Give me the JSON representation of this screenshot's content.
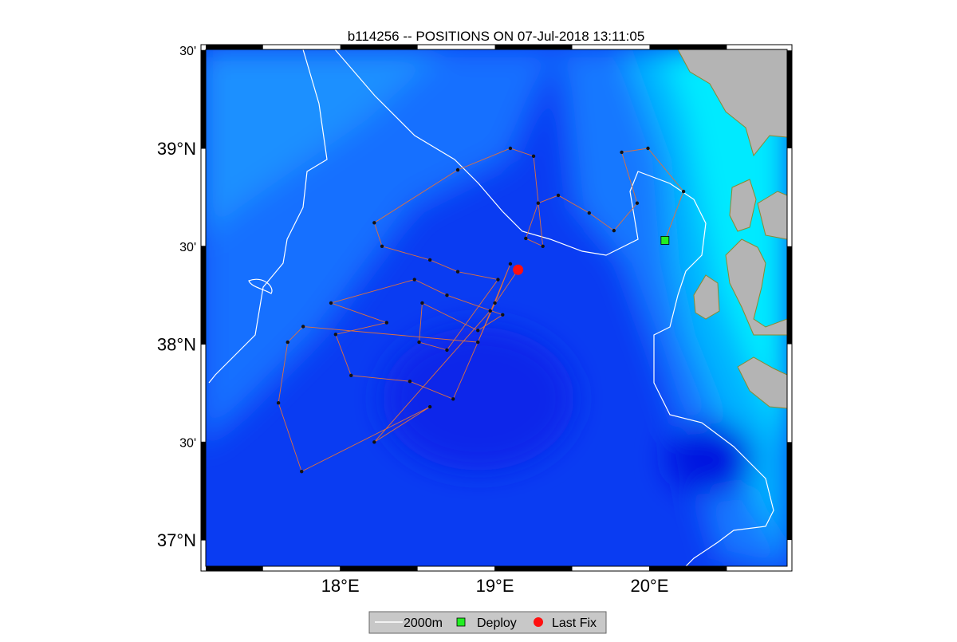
{
  "title": "b114256 -- POSITIONS ON 07-Jul-2018 13:11:05",
  "map": {
    "lon_lim": [
      17.13,
      20.89
    ],
    "lat_lim": [
      36.866,
      39.505
    ],
    "lon_ticks": [
      {
        "value": 18,
        "label": "18°E"
      },
      {
        "value": 19,
        "label": "19°E"
      },
      {
        "value": 20,
        "label": "20°E"
      }
    ],
    "lat_ticks": [
      {
        "value": 39.5,
        "label": "30'"
      },
      {
        "value": 39,
        "label": "39°N"
      },
      {
        "value": 38.5,
        "label": "30'"
      },
      {
        "value": 38,
        "label": "38°N"
      },
      {
        "value": 37.5,
        "label": "30'"
      },
      {
        "value": 37,
        "label": "37°N"
      }
    ],
    "track": {
      "color": "#e0703c",
      "lon": [
        20.1,
        20.22,
        19.99,
        19.82,
        19.92,
        19.77,
        19.61,
        19.41,
        19.28,
        19.2,
        19.31,
        19.25,
        19.1,
        18.76,
        18.22,
        18.27,
        18.58,
        18.76,
        19.02,
        18.69,
        18.51,
        18.53,
        18.89,
        19.05,
        18.69,
        18.48,
        17.94,
        18.3,
        17.97,
        18.07,
        18.45,
        18.73,
        19.0,
        19.1,
        18.89,
        17.76,
        17.66,
        17.6,
        17.75,
        18.58,
        18.22,
        18.97,
        19.15
      ],
      "lat": [
        38.53,
        38.78,
        39.0,
        38.98,
        38.72,
        38.58,
        38.67,
        38.76,
        38.72,
        38.54,
        38.5,
        38.96,
        39.0,
        38.89,
        38.62,
        38.5,
        38.43,
        38.37,
        38.33,
        37.97,
        38.01,
        38.21,
        38.07,
        38.15,
        38.25,
        38.33,
        38.21,
        38.11,
        38.05,
        37.84,
        37.81,
        37.72,
        38.21,
        38.41,
        38.01,
        38.09,
        38.01,
        37.7,
        37.35,
        37.68,
        37.5,
        38.17,
        38.38
      ]
    },
    "deploy": {
      "lon": 20.1,
      "lat": 38.53,
      "color": "#22ee22"
    },
    "last_fix": {
      "lon": 19.15,
      "lat": 38.38,
      "color": "#ff1010"
    }
  },
  "legend": {
    "items": [
      "2000m",
      "Deploy",
      "Last Fix"
    ]
  }
}
